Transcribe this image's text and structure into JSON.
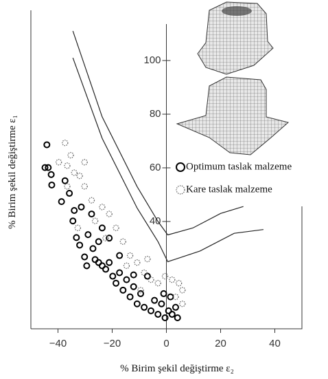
{
  "chart_data": {
    "type": "scatter",
    "x_label": "% Birim şekil değiştirme ε₂",
    "y_label": "% Birim şekil değiştirme ε₁",
    "xlim": [
      -50,
      50
    ],
    "ylim": [
      0,
      120
    ],
    "xticks": [
      {
        "value": -40,
        "label": "−40"
      },
      {
        "value": -20,
        "label": "−20"
      },
      0,
      20,
      40
    ],
    "yticks": [
      40,
      60,
      80,
      100
    ],
    "series": [
      {
        "name": "Optimum taslak malzeme",
        "color": "#000000",
        "x": [
          -44.1,
          -43.6,
          -44.8,
          -42.5,
          -42.3,
          -38.7,
          -37.4,
          -35.8,
          -34.5,
          -34.0,
          -33.2,
          -32.0,
          -30.2,
          -28.9,
          -27.1,
          -26.3,
          -25.0,
          -23.7,
          -22.4,
          -21.1,
          -19.8,
          -18.6,
          -17.3,
          -16.0,
          -14.7,
          -13.4,
          -12.1,
          -10.8,
          -9.5,
          -8.2,
          -7.0,
          -5.7,
          -4.4,
          -3.1,
          -1.8,
          -0.5,
          0.8,
          2.1,
          3.4,
          4.1,
          1.5,
          -1.0,
          -31.4,
          -27.6,
          -23.7,
          -21.1,
          -25.0,
          -29.4,
          -17.3,
          -12.1
        ],
        "values": [
          68.6,
          60.1,
          60.1,
          57.5,
          53.6,
          47.4,
          55.2,
          50.5,
          40.2,
          44.1,
          34.0,
          31.2,
          26.8,
          35.1,
          29.9,
          25.8,
          32.5,
          23.5,
          22.2,
          24.7,
          19.6,
          17.0,
          20.9,
          14.4,
          18.3,
          11.9,
          15.7,
          9.3,
          13.1,
          8.0,
          19.6,
          6.7,
          10.6,
          5.4,
          9.3,
          4.1,
          6.7,
          5.4,
          8.0,
          4.1,
          11.9,
          13.1,
          45.4,
          42.8,
          37.6,
          33.8,
          24.7,
          23.5,
          27.3,
          20.1
        ]
      },
      {
        "name": "Kare taslak malzeme",
        "color": "#666666",
        "x": [
          -37.4,
          -36.6,
          -34.0,
          -32.0,
          -30.2,
          -35.3,
          -27.6,
          -23.7,
          -21.1,
          -18.6,
          -16.0,
          -13.4,
          -10.8,
          -8.2,
          -5.7,
          -3.1,
          -0.5,
          2.1,
          4.6,
          5.9,
          5.9,
          3.4,
          -32.7,
          -26.3,
          -22.4,
          -14.7,
          -7.0,
          -9.5,
          -36.6,
          -39.7,
          -30.2
        ],
        "values": [
          69.3,
          60.8,
          58.2,
          57.0,
          53.1,
          64.7,
          47.9,
          45.4,
          42.8,
          37.6,
          32.5,
          27.3,
          24.7,
          20.9,
          18.3,
          17.0,
          19.6,
          18.3,
          17.0,
          14.4,
          9.3,
          11.9,
          37.6,
          40.2,
          33.8,
          23.5,
          26.0,
          14.4,
          53.1,
          62.1,
          62.1
        ]
      }
    ],
    "curves": [
      {
        "color": "#222222",
        "x": [
          -34.5,
          -23.7,
          -10.8,
          -3.1,
          0.5,
          9.8,
          20,
          28.4
        ],
        "values": [
          111,
          79,
          53,
          40,
          35,
          37.6,
          43,
          45.6
        ]
      },
      {
        "color": "#222222",
        "x": [
          -34.5,
          -23.7,
          -10.8,
          -3.1,
          0.5,
          12.4,
          25,
          35.8
        ],
        "values": [
          101,
          71,
          45,
          32.5,
          25,
          29,
          35.6,
          37
        ]
      }
    ]
  }
}
